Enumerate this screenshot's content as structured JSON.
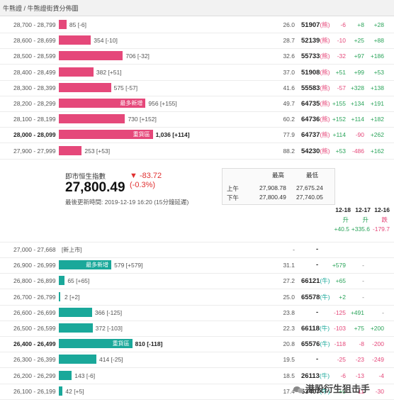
{
  "title": "牛熊證 / 牛熊證街貨分佈圖",
  "colors": {
    "bull": "#e5487a",
    "bear": "#1aa89a",
    "rise": "#2aa45a",
    "fall": "#e5487a"
  },
  "bull_rows": [
    {
      "range": "28,700 - 28,799",
      "value": "85 [-6]",
      "bar": 85,
      "pct": "26.0",
      "code": "51907",
      "kind": "(熊)",
      "c": [
        "-6",
        "+8",
        "+28"
      ]
    },
    {
      "range": "28,600 - 28,699",
      "value": "354 [-10]",
      "bar": 354,
      "pct": "28.7",
      "code": "52139",
      "kind": "(熊)",
      "c": [
        "-10",
        "+25",
        "+88"
      ]
    },
    {
      "range": "28,500 - 28,599",
      "value": "706 [-32]",
      "bar": 706,
      "pct": "32.6",
      "code": "55733",
      "kind": "(熊)",
      "c": [
        "-32",
        "+97",
        "+186"
      ]
    },
    {
      "range": "28,400 - 28,499",
      "value": "382 [+51]",
      "bar": 382,
      "pct": "37.0",
      "code": "51908",
      "kind": "(熊)",
      "c": [
        "+51",
        "+99",
        "+53"
      ]
    },
    {
      "range": "28,300 - 28,399",
      "value": "575 [-57]",
      "bar": 575,
      "pct": "41.6",
      "code": "55583",
      "kind": "(熊)",
      "c": [
        "-57",
        "+328",
        "+138"
      ]
    },
    {
      "range": "28,200 - 28,299",
      "value": "956 [+155]",
      "bar": 956,
      "pct": "49.7",
      "code": "64735",
      "kind": "(熊)",
      "c": [
        "+155",
        "+134",
        "+191"
      ],
      "tag": "最多新增"
    },
    {
      "range": "28,100 - 28,199",
      "value": "730 [+152]",
      "bar": 730,
      "pct": "60.2",
      "code": "64736",
      "kind": "(熊)",
      "c": [
        "+152",
        "+114",
        "+182"
      ]
    },
    {
      "range": "28,000 - 28,099",
      "value": "1,036 [+114]",
      "bar": 1036,
      "pct": "77.9",
      "code": "64737",
      "kind": "(熊)",
      "c": [
        "+114",
        "-90",
        "+262"
      ],
      "tag": "重貨區",
      "bold": true
    },
    {
      "range": "27,900 - 27,999",
      "value": "253 [+53]",
      "bar": 253,
      "pct": "88.2",
      "code": "54230",
      "kind": "(熊)",
      "c": [
        "+53",
        "-486",
        "+162"
      ]
    }
  ],
  "index": {
    "label": "即市恒生指數",
    "value": "27,800.49",
    "change": "▼ -83.72",
    "change_pct": "(-0.3%)",
    "updated": "最後更新時間: 2019-12-19 16:20 (15分鐘延遲)",
    "hl_headers": [
      "最高",
      "最低"
    ],
    "am_label": "上午",
    "am_high": "27,908.78",
    "am_low": "27,675.24",
    "pm_label": "下午",
    "pm_high": "27,800.49",
    "pm_low": "27,740.05"
  },
  "dates": [
    {
      "date": "12-18",
      "dir": "升",
      "val": "+40.5"
    },
    {
      "date": "12-17",
      "dir": "升",
      "val": "+335.6"
    },
    {
      "date": "12-16",
      "dir": "跌",
      "val": "-179.7"
    }
  ],
  "bear_rows": [
    {
      "range": "27,000 - 27,668",
      "note": "[新上市]",
      "pct": "-",
      "code": "-",
      "c": [
        "",
        "",
        ""
      ],
      "bar": 0
    },
    {
      "range": "26,900 - 26,999",
      "value": "579 [+579]",
      "bar": 579,
      "pct": "31.1",
      "code": "-",
      "c": [
        "+579",
        "-",
        ""
      ],
      "tag": "最多新增"
    },
    {
      "range": "26,800 - 26,899",
      "value": "65 [+65]",
      "bar": 65,
      "pct": "27.2",
      "code": "66121",
      "kind": "(牛)",
      "c": [
        "+65",
        "-",
        ""
      ]
    },
    {
      "range": "26,700 - 26,799",
      "value": "2 [+2]",
      "bar": 2,
      "pct": "25.0",
      "code": "65578",
      "kind": "(牛)",
      "c": [
        "+2",
        "-",
        ""
      ]
    },
    {
      "range": "26,600 - 26,699",
      "value": "366 [-125]",
      "bar": 366,
      "pct": "23.8",
      "code": "-",
      "c": [
        "-125",
        "+491",
        "-"
      ]
    },
    {
      "range": "26,500 - 26,599",
      "value": "372 [-103]",
      "bar": 372,
      "pct": "22.3",
      "code": "66118",
      "kind": "(牛)",
      "c": [
        "-103",
        "+75",
        "+200"
      ]
    },
    {
      "range": "26,400 - 26,499",
      "value": "810 [-118]",
      "bar": 810,
      "pct": "20.8",
      "code": "65576",
      "kind": "(牛)",
      "c": [
        "-118",
        "-8",
        "-200"
      ],
      "tag": "重貨區",
      "bold": true
    },
    {
      "range": "26,300 - 26,399",
      "value": "414 [-25]",
      "bar": 414,
      "pct": "19.5",
      "code": "-",
      "c": [
        "-25",
        "-23",
        "-249"
      ]
    },
    {
      "range": "26,200 - 26,299",
      "value": "143 [-6]",
      "bar": 143,
      "pct": "18.5",
      "code": "26113",
      "kind": "(牛)",
      "c": [
        "-6",
        "-13",
        "-4"
      ]
    },
    {
      "range": "26,100 - 26,199",
      "value": "42 [+5]",
      "bar": 42,
      "pct": "17.4",
      "code": "63407",
      "kind": "(牛)",
      "c": [
        "+5",
        "-11",
        "-30"
      ]
    }
  ],
  "watermark": "港股衍生狙击手"
}
